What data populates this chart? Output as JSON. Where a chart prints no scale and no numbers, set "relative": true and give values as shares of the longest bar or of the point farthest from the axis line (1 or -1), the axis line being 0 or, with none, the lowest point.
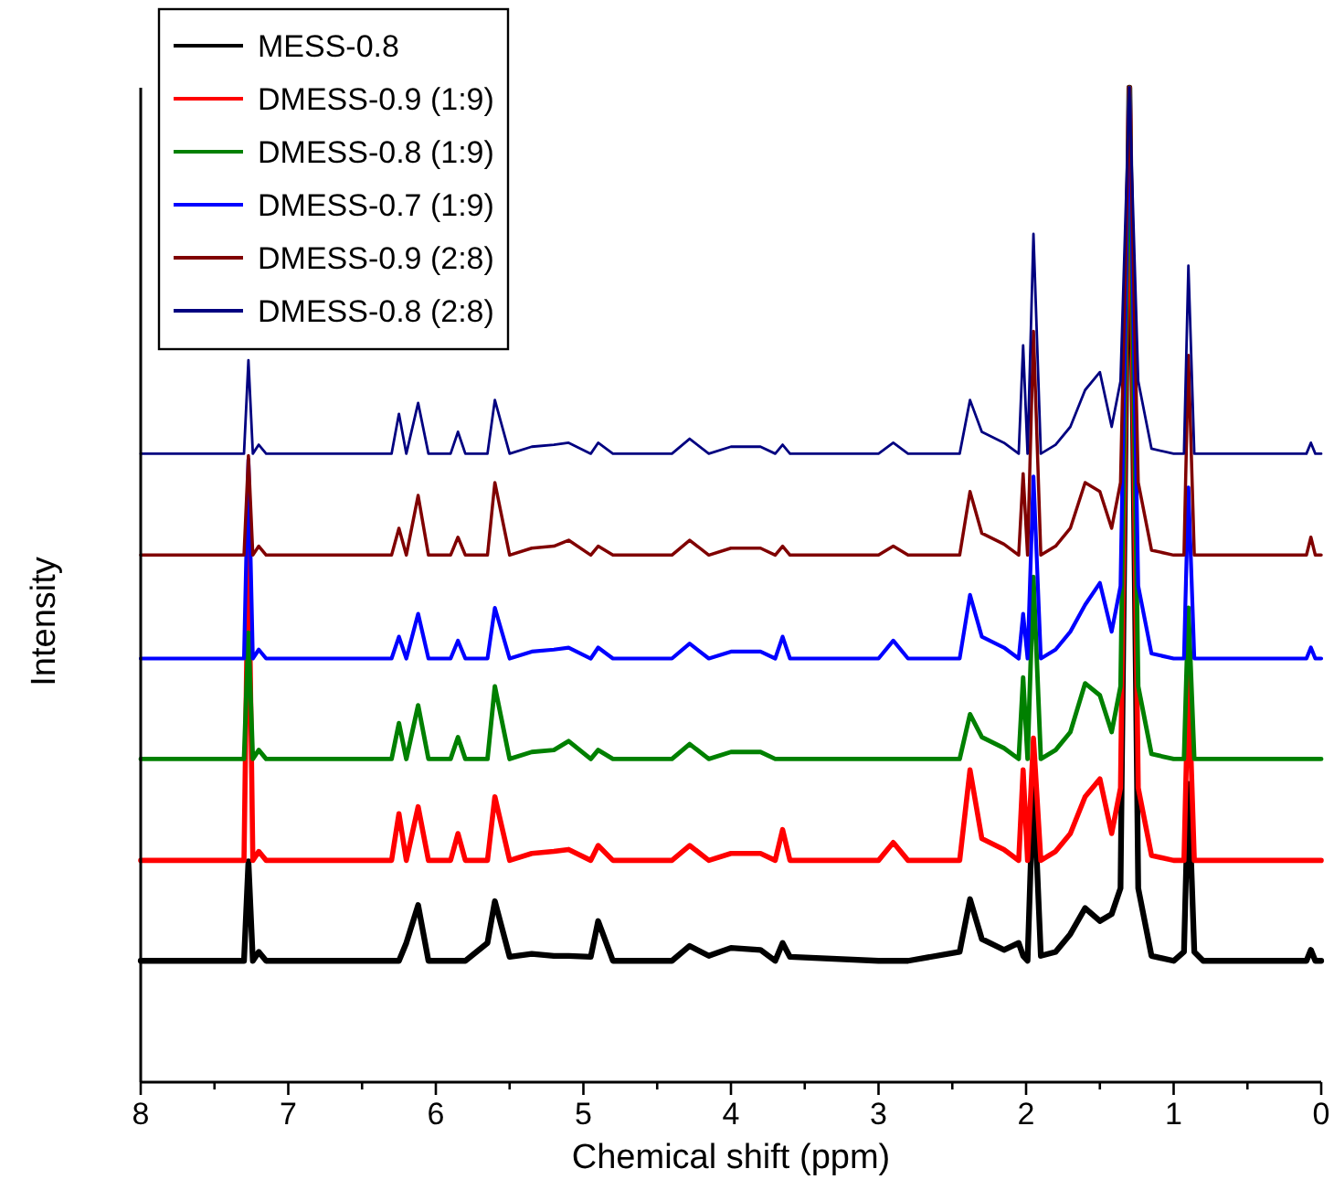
{
  "chart_data": {
    "type": "line",
    "xlabel": "Chemical shift (ppm)",
    "ylabel": "Intensity",
    "relative": true,
    "legend": "top left",
    "grid": false,
    "marker": "none",
    "line_style": "solid",
    "xlim": [
      8,
      0
    ],
    "xticks": [
      8,
      {
        "value": 7.5,
        "label": null
      },
      7,
      {
        "value": 6.5,
        "label": null
      },
      6,
      {
        "value": 5.5,
        "label": null
      },
      5,
      {
        "value": 4.5,
        "label": null
      },
      4,
      {
        "value": 3.5,
        "label": null
      },
      3,
      {
        "value": 2.5,
        "label": null
      },
      2,
      {
        "value": 1.5,
        "label": null
      },
      1,
      {
        "value": 0.5,
        "label": null
      },
      0
    ],
    "x": [
      8,
      7.3,
      7.27,
      7.24,
      7.2,
      7.15,
      6.3,
      6.25,
      6.2,
      6.12,
      6.05,
      5.9,
      5.85,
      5.8,
      5.65,
      5.6,
      5.5,
      5.35,
      5.2,
      5.1,
      4.95,
      4.9,
      4.8,
      4.4,
      4.28,
      4.15,
      4.0,
      3.8,
      3.7,
      3.65,
      3.6,
      3.0,
      2.9,
      2.8,
      2.45,
      2.38,
      2.3,
      2.15,
      2.05,
      2.02,
      1.99,
      1.95,
      1.9,
      1.8,
      1.7,
      1.6,
      1.5,
      1.42,
      1.36,
      1.3,
      1.24,
      1.15,
      1.0,
      0.93,
      0.9,
      0.86,
      0.8,
      0.1,
      0.07,
      0.04,
      0
    ],
    "series": [
      {
        "name": "MESS-0.8",
        "color": "#000000",
        "values": [
          0.122,
          0.122,
          0.222,
          0.122,
          0.131,
          0.122,
          0.122,
          0.122,
          0.14,
          0.178,
          0.122,
          0.122,
          0.122,
          0.122,
          0.14,
          0.182,
          0.126,
          0.129,
          0.127,
          0.127,
          0.126,
          0.162,
          0.122,
          0.122,
          0.137,
          0.127,
          0.135,
          0.133,
          0.122,
          0.14,
          0.126,
          0.122,
          0.122,
          0.122,
          0.131,
          0.184,
          0.144,
          0.133,
          0.14,
          0.127,
          0.122,
          0.304,
          0.127,
          0.131,
          0.149,
          0.175,
          0.162,
          0.169,
          0.195,
          1.0,
          0.195,
          0.127,
          0.122,
          0.131,
          0.3,
          0.131,
          0.122,
          0.122,
          0.133,
          0.122,
          0.122
        ]
      },
      {
        "name": "DMESS-0.9 (1:9)",
        "color": "#ff0000",
        "values": [
          0.223,
          0.223,
          0.55,
          0.223,
          0.232,
          0.223,
          0.223,
          0.27,
          0.223,
          0.277,
          0.223,
          0.223,
          0.25,
          0.223,
          0.223,
          0.287,
          0.223,
          0.23,
          0.232,
          0.234,
          0.223,
          0.238,
          0.223,
          0.223,
          0.238,
          0.223,
          0.23,
          0.23,
          0.223,
          0.254,
          0.223,
          0.223,
          0.241,
          0.223,
          0.223,
          0.314,
          0.245,
          0.234,
          0.223,
          0.314,
          0.223,
          0.346,
          0.223,
          0.232,
          0.25,
          0.287,
          0.305,
          0.25,
          0.296,
          1.0,
          0.296,
          0.228,
          0.223,
          0.223,
          0.408,
          0.223,
          0.223,
          0.223,
          0.223,
          0.223,
          0.223
        ]
      },
      {
        "name": "DMESS-0.8 (1:9)",
        "color": "#008000",
        "values": [
          0.325,
          0.325,
          0.452,
          0.325,
          0.334,
          0.325,
          0.325,
          0.361,
          0.325,
          0.379,
          0.325,
          0.325,
          0.347,
          0.325,
          0.325,
          0.398,
          0.325,
          0.332,
          0.334,
          0.343,
          0.325,
          0.334,
          0.325,
          0.325,
          0.34,
          0.325,
          0.332,
          0.332,
          0.325,
          0.325,
          0.325,
          0.325,
          0.325,
          0.325,
          0.325,
          0.37,
          0.347,
          0.336,
          0.325,
          0.407,
          0.325,
          0.508,
          0.325,
          0.334,
          0.352,
          0.401,
          0.389,
          0.352,
          0.398,
          1.0,
          0.398,
          0.33,
          0.325,
          0.325,
          0.477,
          0.325,
          0.325,
          0.325,
          0.325,
          0.325,
          0.325
        ]
      },
      {
        "name": "DMESS-0.7 (1:9)",
        "color": "#0000ff",
        "values": [
          0.426,
          0.426,
          0.626,
          0.426,
          0.435,
          0.426,
          0.426,
          0.448,
          0.426,
          0.471,
          0.426,
          0.426,
          0.444,
          0.426,
          0.426,
          0.477,
          0.426,
          0.433,
          0.435,
          0.437,
          0.426,
          0.437,
          0.426,
          0.426,
          0.441,
          0.426,
          0.433,
          0.433,
          0.426,
          0.448,
          0.426,
          0.426,
          0.444,
          0.426,
          0.426,
          0.49,
          0.448,
          0.437,
          0.426,
          0.471,
          0.426,
          0.609,
          0.426,
          0.435,
          0.453,
          0.48,
          0.502,
          0.453,
          0.499,
          1.0,
          0.499,
          0.431,
          0.426,
          0.426,
          0.598,
          0.426,
          0.426,
          0.426,
          0.437,
          0.426,
          0.426
        ]
      },
      {
        "name": "DMESS-0.9 (2:8)",
        "color": "#800000",
        "values": [
          0.53,
          0.53,
          0.63,
          0.53,
          0.539,
          0.53,
          0.53,
          0.557,
          0.53,
          0.59,
          0.53,
          0.53,
          0.548,
          0.53,
          0.53,
          0.603,
          0.53,
          0.537,
          0.539,
          0.545,
          0.53,
          0.539,
          0.53,
          0.53,
          0.545,
          0.53,
          0.537,
          0.537,
          0.53,
          0.539,
          0.53,
          0.53,
          0.539,
          0.53,
          0.53,
          0.594,
          0.552,
          0.541,
          0.53,
          0.612,
          0.53,
          0.755,
          0.53,
          0.539,
          0.557,
          0.603,
          0.594,
          0.557,
          0.603,
          1.0,
          0.603,
          0.535,
          0.53,
          0.53,
          0.731,
          0.53,
          0.53,
          0.53,
          0.548,
          0.53,
          0.53
        ]
      },
      {
        "name": "DMESS-0.8 (2:8)",
        "color": "#000080",
        "values": [
          0.632,
          0.632,
          0.726,
          0.632,
          0.641,
          0.632,
          0.632,
          0.672,
          0.632,
          0.683,
          0.632,
          0.632,
          0.654,
          0.632,
          0.632,
          0.686,
          0.632,
          0.639,
          0.641,
          0.643,
          0.632,
          0.643,
          0.632,
          0.632,
          0.647,
          0.632,
          0.639,
          0.639,
          0.632,
          0.641,
          0.632,
          0.632,
          0.643,
          0.632,
          0.632,
          0.686,
          0.654,
          0.643,
          0.632,
          0.741,
          0.632,
          0.853,
          0.632,
          0.641,
          0.659,
          0.696,
          0.714,
          0.659,
          0.705,
          1.0,
          0.705,
          0.637,
          0.632,
          0.632,
          0.821,
          0.632,
          0.632,
          0.632,
          0.643,
          0.632,
          0.632
        ]
      }
    ]
  }
}
